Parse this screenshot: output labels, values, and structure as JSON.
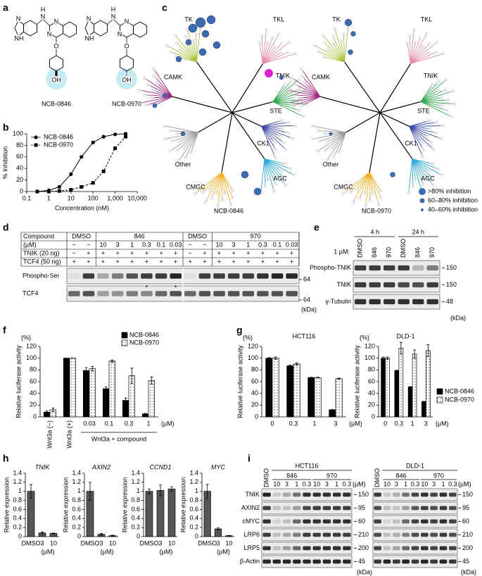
{
  "panel_labels": [
    "a",
    "b",
    "c",
    "d",
    "e",
    "f",
    "g",
    "h",
    "i"
  ],
  "structures": [
    {
      "name": "NCB-0846",
      "atoms": [
        "N",
        "NH",
        "H",
        "N",
        "N",
        "N",
        "O",
        "OH"
      ]
    },
    {
      "name": "NCB-0970",
      "atoms": [
        "N",
        "NH",
        "H",
        "N",
        "N",
        "N",
        "O",
        "OH"
      ]
    }
  ],
  "chart_data": [
    {
      "type": "line",
      "ylabel": "% Inhibition",
      "xlabel": "Concentration (nM)",
      "x": [
        0.3,
        1,
        3,
        10,
        30,
        100,
        300,
        1000,
        3000
      ],
      "series": [
        {
          "name": "NCB-0846",
          "color": "#000000",
          "marker": "circle",
          "line": "solid",
          "values": [
            0,
            2,
            8,
            30,
            60,
            85,
            95,
            99,
            100
          ]
        },
        {
          "name": "NCB-0970",
          "color": "#000000",
          "marker": "square",
          "line": "dashed",
          "values": [
            0,
            0,
            1,
            3,
            8,
            15,
            35,
            75,
            95
          ]
        }
      ],
      "xscale": "log",
      "xlim": [
        0.1,
        10000
      ],
      "xticks": [
        0.1,
        1,
        10,
        100,
        {
          "value": 1000,
          "label": "1,000"
        },
        {
          "value": 10000,
          "label": "10,000"
        }
      ],
      "ylim": [
        0,
        100
      ],
      "yticks": [
        0,
        20,
        40,
        60,
        80,
        100
      ],
      "legend": "upper left"
    },
    {
      "type": "bar",
      "ylabel": "Relative luciferase activity",
      "unit_label": "(%)",
      "categories": [
        "Wnt3a (−)",
        "Wnt3a (+)",
        "0.03",
        "0.1",
        "0.3",
        "1"
      ],
      "x_unit": "(µM)",
      "group_label": "Wnt3a + compound",
      "series": [
        {
          "name": "NCB-0846",
          "color": "#000000",
          "values": [
            8,
            100,
            79,
            48,
            28,
            5
          ],
          "errors": [
            2,
            0,
            5,
            3,
            4,
            1
          ]
        },
        {
          "name": "NCB-0970",
          "color": "#ffffff",
          "hatch": "dots",
          "values": [
            12,
            100,
            82,
            95,
            70,
            62
          ],
          "errors": [
            3,
            0,
            4,
            2,
            13,
            6
          ]
        }
      ],
      "ylim": [
        0,
        120
      ],
      "yticks": [
        0,
        20,
        40,
        60,
        80,
        100,
        120
      ],
      "legend": "upper right"
    },
    {
      "type": "bar",
      "title": "HCT116",
      "ylabel": "Relative luciferase activity",
      "unit_label": "(%)",
      "categories": [
        "0",
        "0.3",
        "1",
        "3"
      ],
      "x_unit": "(µM)",
      "series": [
        {
          "color": "#000000",
          "values": [
            100,
            87,
            67,
            12
          ],
          "errors": [
            1,
            1,
            0.5,
            0.5
          ]
        },
        {
          "color": "#ffffff",
          "hatch": "dots",
          "values": [
            100,
            90,
            67,
            65
          ],
          "errors": [
            2,
            2,
            0.5,
            1
          ]
        }
      ],
      "ylim": [
        0,
        120
      ],
      "yticks": [
        0,
        20,
        40,
        60,
        80,
        100,
        120
      ]
    },
    {
      "type": "bar",
      "title": "DLD-1",
      "ylabel": "Relative luciferase activity",
      "unit_label": "(%)",
      "categories": [
        "0",
        "0.3",
        "1",
        "3"
      ],
      "x_unit": "(µM)",
      "series": [
        {
          "name": "NCB-0846",
          "color": "#000000",
          "values": [
            100,
            79,
            51,
            26
          ],
          "errors": [
            2,
            0.5,
            0.5,
            0.5
          ]
        },
        {
          "name": "NCB-0970",
          "color": "#ffffff",
          "hatch": "dots",
          "values": [
            100,
            117,
            107,
            113
          ],
          "errors": [
            2,
            10,
            7,
            10
          ]
        }
      ],
      "ylim": [
        0,
        120
      ],
      "yticks": [
        0,
        20,
        40,
        60,
        80,
        100,
        120
      ],
      "legend": "right"
    },
    {
      "type": "bar",
      "title": "TNIK",
      "title_italic": true,
      "ylabel": "Relative expression",
      "categories": [
        "DMSO",
        "3",
        "10"
      ],
      "x_unit": "(µM)",
      "values": [
        1,
        0.08,
        0.07
      ],
      "errors": [
        0.15,
        0.02,
        0.01
      ],
      "color": "#555555",
      "ylim": [
        0,
        1.4
      ],
      "yticks": [
        0,
        0.2,
        0.4,
        0.6,
        0.8,
        1,
        1.2,
        1.4
      ]
    },
    {
      "type": "bar",
      "title": "AXIN2",
      "title_italic": true,
      "ylabel": "Relative expression",
      "categories": [
        "DMSO",
        "3",
        "10"
      ],
      "x_unit": "(µM)",
      "values": [
        1,
        0.05,
        0.02
      ],
      "errors": [
        0.2,
        0.02,
        0.01
      ],
      "color": "#555555",
      "ylim": [
        0,
        1.4
      ],
      "yticks": [
        0,
        0.2,
        0.4,
        0.6,
        0.8,
        1,
        1.2,
        1.4
      ]
    },
    {
      "type": "bar",
      "title": "CCND1",
      "title_italic": true,
      "ylabel": "Relative expression",
      "categories": [
        "DMSO",
        "3",
        "10"
      ],
      "x_unit": "(µM)",
      "values": [
        1,
        1.02,
        1.05
      ],
      "errors": [
        0.05,
        0.12,
        0.05
      ],
      "color": "#555555",
      "ylim": [
        0,
        1.4
      ],
      "yticks": [
        0,
        0.2,
        0.4,
        0.6,
        0.8,
        1,
        1.2,
        1.4
      ]
    },
    {
      "type": "bar",
      "title": "MYC",
      "title_italic": true,
      "ylabel": "Relative expression",
      "categories": [
        "DMSO",
        "3",
        "10"
      ],
      "x_unit": "(µM)",
      "values": [
        1,
        0.17,
        0.02
      ],
      "errors": [
        0.15,
        0.02,
        0.005
      ],
      "color": "#555555",
      "ylim": [
        0,
        1.4
      ],
      "yticks": [
        0,
        0.2,
        0.4,
        0.6,
        0.8,
        1,
        1.2,
        1.4
      ]
    }
  ],
  "kinome": {
    "groups": [
      {
        "label": "TK",
        "color": "#a9c23c"
      },
      {
        "label": "TKL",
        "color": "#e58aa6"
      },
      {
        "label": "CAMK",
        "color": "#a0257c"
      },
      {
        "label": "STE",
        "color": "#2ea84c"
      },
      {
        "label": "CK1",
        "color": "#3c48a6"
      },
      {
        "label": "AGC",
        "color": "#2aa8d6"
      },
      {
        "label": "CMGC",
        "color": "#efb022"
      },
      {
        "label": "Other",
        "color": "#9a9a9a"
      }
    ],
    "highlight": {
      "label": "TNIK",
      "color": "#dd22cc"
    },
    "trees": [
      "NCB-0846",
      "NCB-0970"
    ],
    "legend": [
      ">80% inhibition",
      "60–80% inhibition",
      "40–60% inhibition"
    ]
  },
  "blot_d": {
    "header": [
      "Compound",
      "DMSO",
      "846",
      "DMSO",
      "970"
    ],
    "conc_label": "(µM)",
    "lanes": [
      "−",
      "−",
      "10",
      "3",
      "1",
      "0.3",
      "0.1",
      "0.03",
      "−",
      "−",
      "10",
      "3",
      "1",
      "0.3",
      "0.1",
      "0.03"
    ],
    "rows": [
      {
        "label": "TNIK (20 ng)",
        "values": [
          "−",
          "+",
          "+",
          "+",
          "+",
          "+",
          "+",
          "+",
          "−",
          "+",
          "+",
          "+",
          "+",
          "+",
          "+",
          "+"
        ]
      },
      {
        "label": "TCF4 (50 ng)",
        "values": [
          "+",
          "+",
          "+",
          "+",
          "+",
          "+",
          "+",
          "+",
          "+",
          "+",
          "+",
          "+",
          "+",
          "+",
          "+",
          "+"
        ]
      }
    ],
    "blots": [
      {
        "label": "Phospho-Ser",
        "marker": 64
      },
      {
        "label": "TCF4",
        "marker": 64
      }
    ],
    "asterisks": [
      "*",
      "*"
    ],
    "unit": "(kDa)"
  },
  "blot_e": {
    "times": [
      "4 h",
      "24 h"
    ],
    "dose": "1 µM:",
    "lanes": [
      "DMSO",
      "846",
      "970",
      "DMSO",
      "846",
      "970"
    ],
    "blots": [
      {
        "label": "Phospho-TNIK",
        "marker": 150
      },
      {
        "label": "TNIK",
        "marker": 150
      },
      {
        "label": "γ-Tubulin",
        "marker": 48
      }
    ],
    "unit": "(kDa)"
  },
  "blot_i": {
    "panels": [
      "HCT116",
      "DLD-1"
    ],
    "control": "DMSO",
    "groups": [
      "846",
      "970"
    ],
    "lanes": [
      "10",
      "3",
      "1",
      "0.3",
      "10",
      "3",
      "1",
      "0.3"
    ],
    "conc_unit": "(µM)",
    "blots": [
      {
        "label": "TNIK",
        "marker": 150
      },
      {
        "label": "AXIN2",
        "marker": 95
      },
      {
        "label": "cMYC",
        "marker": 60
      },
      {
        "label": "LRP6",
        "marker": 210
      },
      {
        "label": "LRP5",
        "marker": 200
      },
      {
        "label": "β-Actin",
        "marker": 45
      }
    ],
    "unit": "(kDa)"
  }
}
